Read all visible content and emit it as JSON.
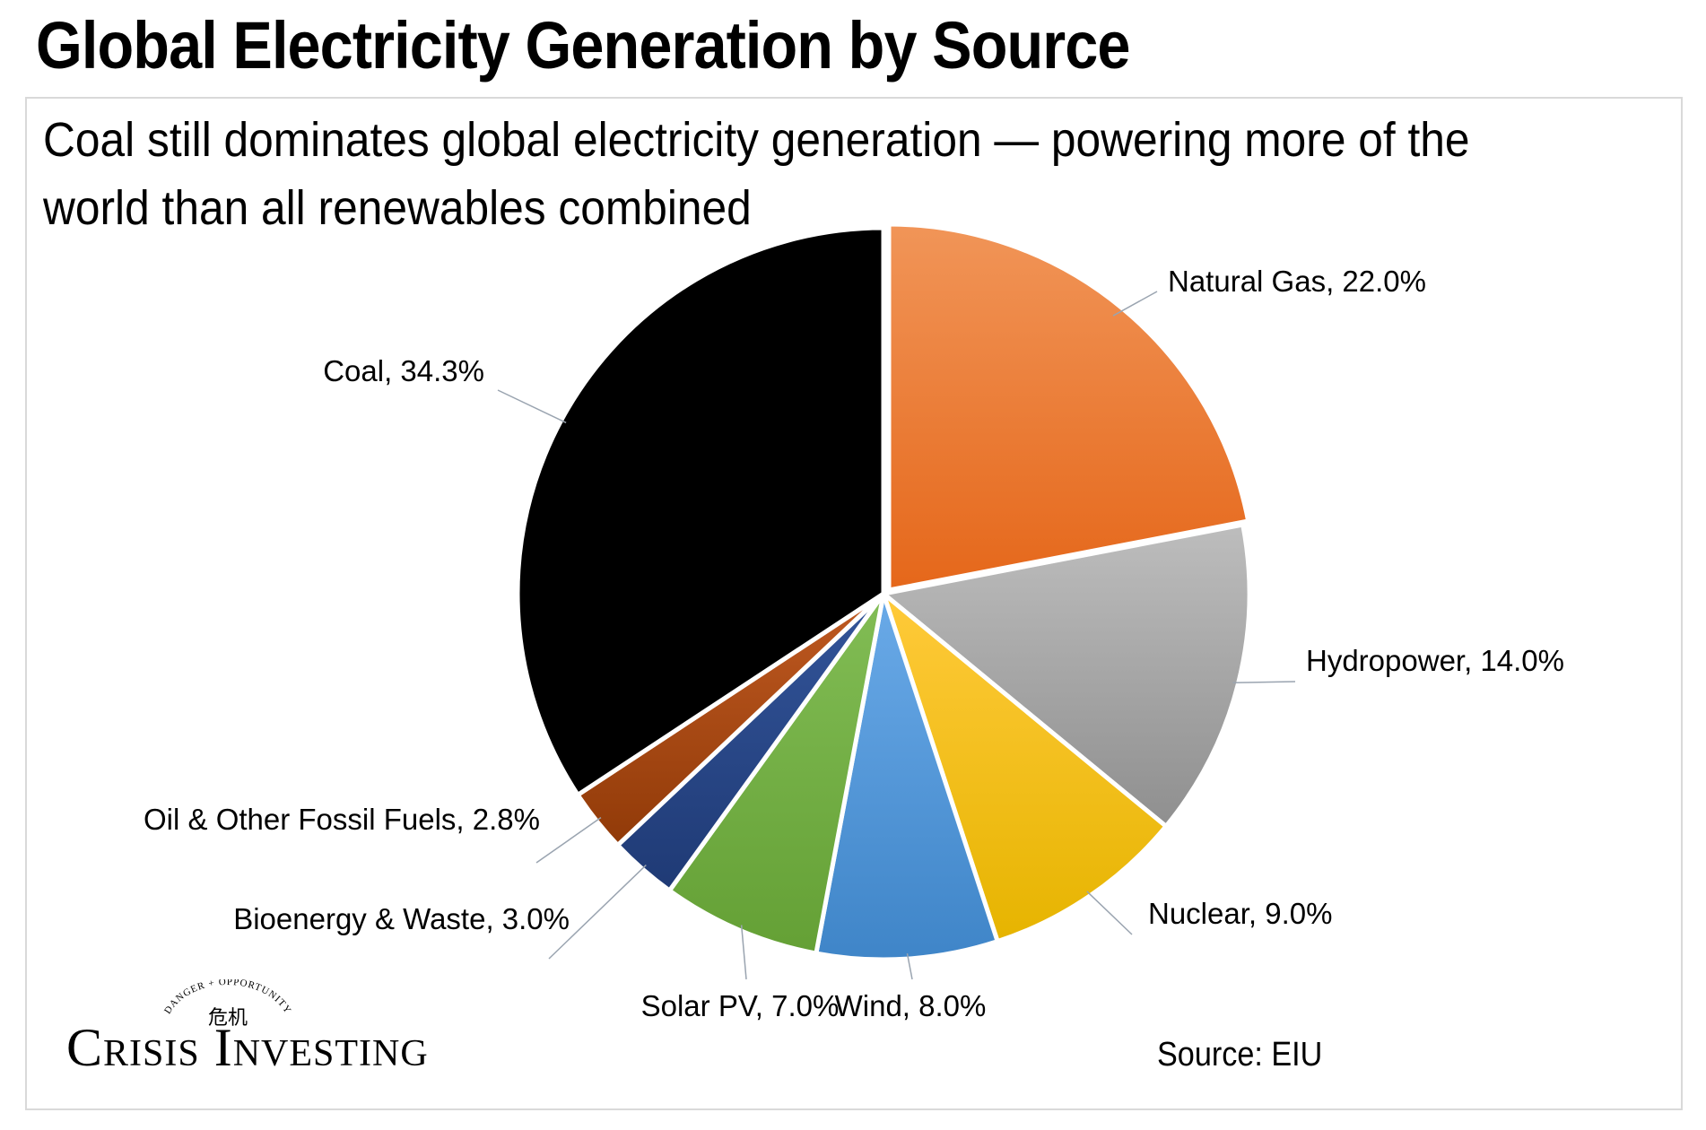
{
  "title": "Global Electricity Generation by Source",
  "subtitle": "Coal still dominates global electricity generation — powering more of the world than all renewables combined",
  "source": "Source: EIU",
  "logo": {
    "name": "Crisis Investing",
    "tagline": "DANGER + OPPORTUNITY",
    "glyphs": "危机"
  },
  "chart_data": {
    "type": "pie",
    "title": "",
    "start": "12 o'clock, clockwise",
    "slices": [
      {
        "name": "Natural Gas",
        "value": 22.0,
        "label": "Natural Gas, 22.0%",
        "color": "#ee7a25",
        "color_top": "#f19558",
        "color_bottom": "#e5671a"
      },
      {
        "name": "Hydropower",
        "value": 14.0,
        "label": "Hydropower, 14.0%",
        "color": "#a6a6a6",
        "color_top": "#bdbdbd",
        "color_bottom": "#8f8f8f"
      },
      {
        "name": "Nuclear",
        "value": 9.0,
        "label": "Nuclear, 9.0%",
        "color": "#fbbf12",
        "color_top": "#ffca3a",
        "color_bottom": "#e6b400"
      },
      {
        "name": "Wind",
        "value": 8.0,
        "label": "Wind, 8.0%",
        "color": "#559be0",
        "color_top": "#6aaae8",
        "color_bottom": "#3f85c8"
      },
      {
        "name": "Solar PV",
        "value": 7.0,
        "label": "Solar PV, 7.0%",
        "color": "#72b143",
        "color_top": "#82bd55",
        "color_bottom": "#64a035"
      },
      {
        "name": "Bioenergy & Waste",
        "value": 3.0,
        "label": "Bioenergy & Waste,  3.0%",
        "color": "#2b4a8a",
        "color_top": "#33559a",
        "color_bottom": "#1f3a75"
      },
      {
        "name": "Oil & Other Fossil Fuels",
        "value": 2.8,
        "label": "Oil & Other Fossil Fuels, 2.8%",
        "color": "#b5501a",
        "color_top": "#c05a22",
        "color_bottom": "#913a08"
      },
      {
        "name": "Coal",
        "value": 34.3,
        "label": "Coal, 34.3%",
        "color": "#000000",
        "color_top": "#000000",
        "color_bottom": "#000000"
      }
    ]
  }
}
